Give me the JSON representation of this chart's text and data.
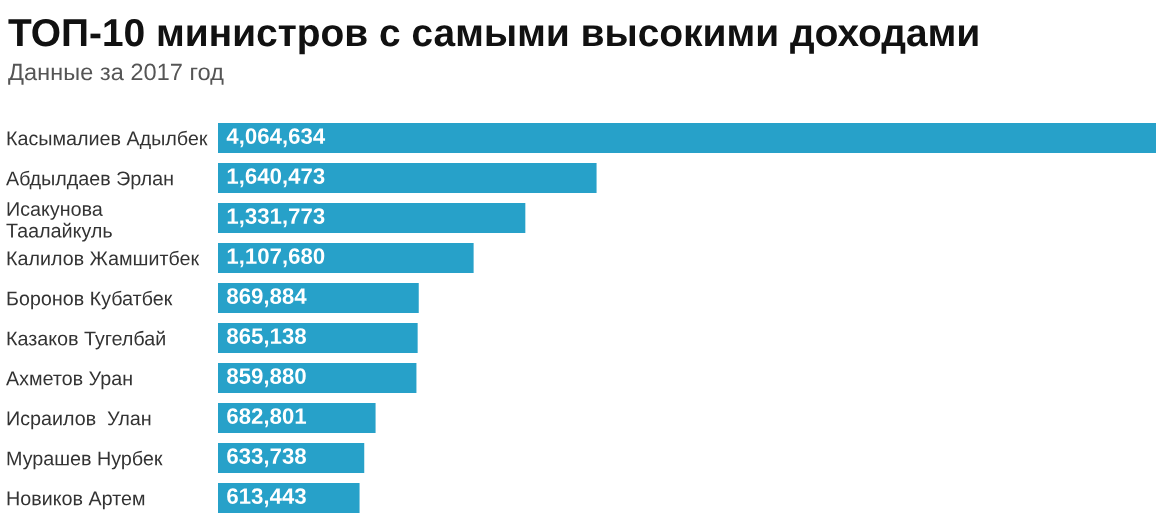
{
  "chart_data": {
    "type": "bar",
    "orientation": "horizontal",
    "title": "ТОП-10 министров с самыми высокими доходами",
    "subtitle": "Данные за 2017 год",
    "categories": [
      "Касымалиев Адылбек",
      "Абдылдаев Эрлан",
      "Исакунова\nТаалайкуль",
      "Калилов Жамшитбек",
      "Боронов Кубатбек",
      "Казаков Тугелбай",
      "Ахметов Уран",
      "Исраилов  Улан",
      "Мурашев Нурбек",
      "Новиков Артем"
    ],
    "values": [
      4064634,
      1640473,
      1331773,
      1107680,
      869884,
      865138,
      859880,
      682801,
      633738,
      613443
    ],
    "value_labels": [
      "4,064,634",
      "1,640,473",
      "1,331,773",
      "1,107,680",
      "869,884",
      "865,138",
      "859,880",
      "682,801",
      "633,738",
      "613,443"
    ],
    "color": "#27a1c9",
    "grid": false,
    "legend": false
  }
}
